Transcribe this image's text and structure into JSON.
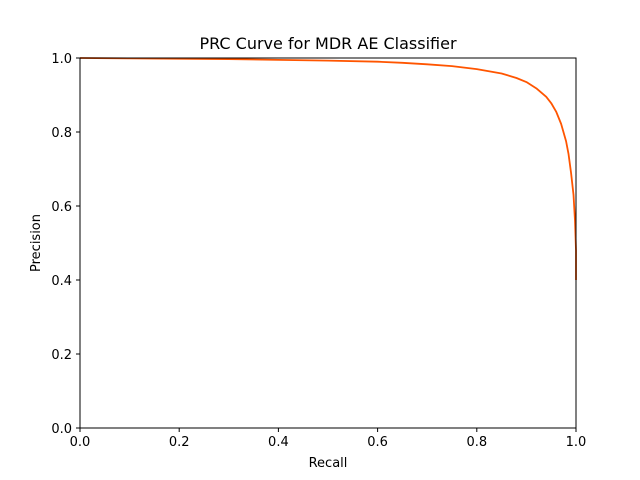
{
  "chart_data": {
    "type": "line",
    "title": "PRC Curve for MDR AE Classifier",
    "xlabel": "Recall",
    "ylabel": "Precision",
    "xlim": [
      0.0,
      1.0
    ],
    "ylim": [
      0.0,
      1.0
    ],
    "grid": false,
    "legend": "none",
    "x_ticks": [
      "0.0",
      "0.2",
      "0.4",
      "0.6",
      "0.8",
      "1.0"
    ],
    "y_ticks": [
      "0.0",
      "0.2",
      "0.4",
      "0.6",
      "0.8",
      "1.0"
    ],
    "series": [
      {
        "color": "#ff5500",
        "x": [
          0.0,
          0.1,
          0.2,
          0.3,
          0.4,
          0.5,
          0.6,
          0.65,
          0.7,
          0.75,
          0.8,
          0.85,
          0.88,
          0.9,
          0.92,
          0.94,
          0.95,
          0.96,
          0.97,
          0.98,
          0.985,
          0.99,
          0.995,
          0.998,
          1.0,
          1.0
        ],
        "y": [
          1.0,
          0.999,
          0.998,
          0.997,
          0.995,
          0.993,
          0.99,
          0.987,
          0.983,
          0.978,
          0.97,
          0.958,
          0.946,
          0.935,
          0.918,
          0.895,
          0.878,
          0.855,
          0.822,
          0.775,
          0.74,
          0.69,
          0.63,
          0.56,
          0.48,
          0.4
        ]
      }
    ]
  }
}
